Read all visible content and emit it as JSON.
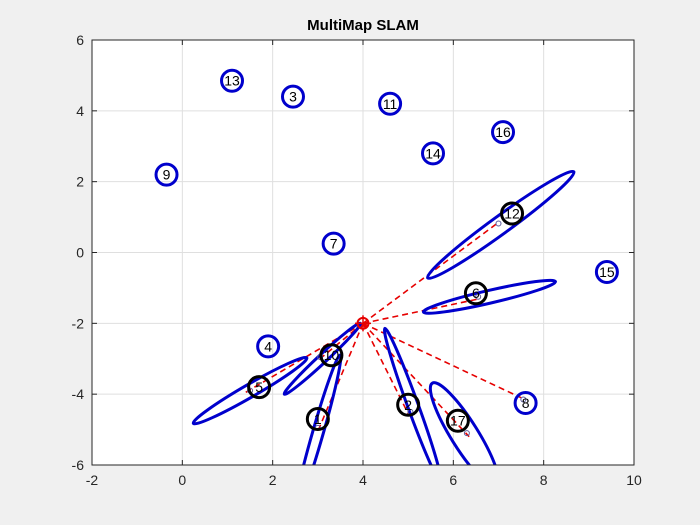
{
  "chart_data": {
    "type": "scatter",
    "title": "MultiMap SLAM",
    "xlabel": "",
    "ylabel": "",
    "xlim": [
      -2,
      10
    ],
    "ylim": [
      -6,
      6
    ],
    "xticks": [
      -2,
      0,
      2,
      4,
      6,
      8,
      10
    ],
    "yticks": [
      -6,
      -4,
      -2,
      0,
      2,
      4,
      6
    ],
    "grid": true,
    "colors": {
      "landmark": "#0000cc",
      "observed": "#000000",
      "ray": "#e60000",
      "robot": "#e60000",
      "axes_bg": "#ffffff",
      "figure_bg": "#f0f0f0",
      "grid": "#dfdfdf"
    },
    "robot": {
      "x": 4.0,
      "y": -2.0
    },
    "landmarks": [
      {
        "id": "1",
        "x": 3.0,
        "y": -4.7,
        "observed": true
      },
      {
        "id": "2",
        "x": 5.0,
        "y": -4.3,
        "observed": true
      },
      {
        "id": "3",
        "x": 2.45,
        "y": 4.4,
        "observed": false
      },
      {
        "id": "4",
        "x": 1.9,
        "y": -2.65,
        "observed": false
      },
      {
        "id": "5",
        "x": 1.7,
        "y": -3.8,
        "observed": true
      },
      {
        "id": "6",
        "x": 6.5,
        "y": -1.15,
        "observed": true
      },
      {
        "id": "7",
        "x": 3.35,
        "y": 0.25,
        "observed": false
      },
      {
        "id": "8",
        "x": 7.6,
        "y": -4.25,
        "observed": false
      },
      {
        "id": "9",
        "x": -0.35,
        "y": 2.2,
        "observed": false
      },
      {
        "id": "10",
        "x": 3.3,
        "y": -2.9,
        "observed": true
      },
      {
        "id": "11",
        "x": 4.6,
        "y": 4.2,
        "observed": false
      },
      {
        "id": "12",
        "x": 7.3,
        "y": 1.1,
        "observed": true
      },
      {
        "id": "13",
        "x": 1.1,
        "y": 4.85,
        "observed": false
      },
      {
        "id": "14",
        "x": 5.55,
        "y": 2.8,
        "observed": false
      },
      {
        "id": "15",
        "x": 9.4,
        "y": -0.55,
        "observed": false
      },
      {
        "id": "16",
        "x": 7.1,
        "y": 3.4,
        "observed": false
      },
      {
        "id": "17",
        "x": 6.1,
        "y": -4.75,
        "observed": true
      }
    ],
    "covariance_ellipses": [
      {
        "landmark": "12",
        "cx": 7.05,
        "cy": 0.78,
        "rx": 2.0,
        "ry": 0.25,
        "angle_deg": 36
      },
      {
        "landmark": "6",
        "cx": 6.8,
        "cy": -1.25,
        "rx": 1.5,
        "ry": 0.18,
        "angle_deg": 13
      },
      {
        "landmark": "10",
        "cx": 3.1,
        "cy": -3.0,
        "rx": 1.15,
        "ry": 0.12,
        "angle_deg": 43
      },
      {
        "landmark": "5",
        "cx": 1.5,
        "cy": -3.9,
        "rx": 1.45,
        "ry": 0.18,
        "angle_deg": 30
      },
      {
        "landmark": "1",
        "cx": 3.0,
        "cy": -5.1,
        "rx": 1.8,
        "ry": 0.15,
        "angle_deg": 74
      },
      {
        "landmark": "2",
        "cx": 5.1,
        "cy": -4.3,
        "rx": 1.8,
        "ry": 0.15,
        "angle_deg": -70
      },
      {
        "landmark": "17",
        "cx": 6.25,
        "cy": -5.15,
        "rx": 1.35,
        "ry": 0.38,
        "angle_deg": -58
      }
    ],
    "rays": [
      {
        "to_x": 7.0,
        "to_y": 0.85
      },
      {
        "to_x": 6.6,
        "to_y": -1.3
      },
      {
        "to_x": 3.0,
        "to_y": -3.05
      },
      {
        "to_x": 1.4,
        "to_y": -3.95
      },
      {
        "to_x": 3.0,
        "to_y": -5.05
      },
      {
        "to_x": 5.0,
        "to_y": -4.55
      },
      {
        "to_x": 6.35,
        "to_y": -5.2
      },
      {
        "to_x": 7.5,
        "to_y": -4.1
      }
    ],
    "estimate_marks": [
      {
        "x": 7.0,
        "y": 0.82
      },
      {
        "x": 6.55,
        "y": -1.25
      },
      {
        "x": 3.05,
        "y": -2.95
      },
      {
        "x": 1.5,
        "y": -3.9
      },
      {
        "x": 3.0,
        "y": -4.95
      },
      {
        "x": 5.05,
        "y": -4.5
      },
      {
        "x": 6.3,
        "y": -5.1
      },
      {
        "x": 7.55,
        "y": -4.15
      }
    ]
  }
}
